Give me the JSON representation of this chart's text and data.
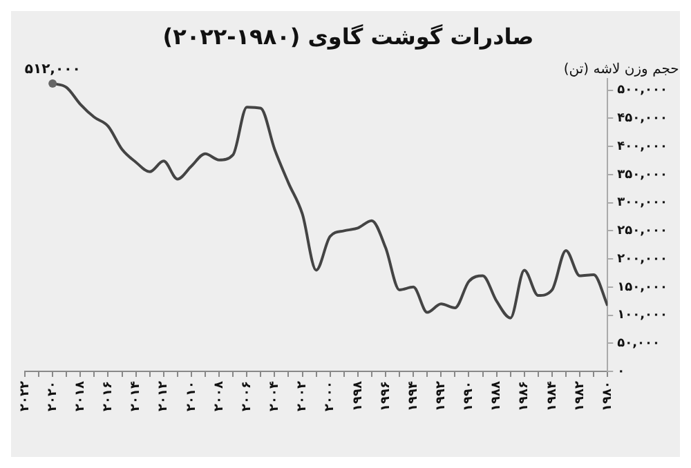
{
  "chart_data": {
    "type": "line",
    "title": "صادرات گوشت گاوی (۱۹۸۰-۲۰۲۲)",
    "ylabel": "حجم وزن لاشه (تن)",
    "x": [
      1980,
      1981,
      1982,
      1983,
      1984,
      1985,
      1986,
      1987,
      1988,
      1989,
      1990,
      1991,
      1992,
      1993,
      1994,
      1995,
      1996,
      1997,
      1998,
      1999,
      2000,
      2001,
      2002,
      2003,
      2004,
      2005,
      2006,
      2007,
      2008,
      2009,
      2010,
      2011,
      2012,
      2013,
      2014,
      2015,
      2016,
      2017,
      2018,
      2019,
      2020
    ],
    "series": [
      {
        "color": "#444444",
        "values": [
          117000,
          172000,
          170000,
          215000,
          145000,
          135000,
          180000,
          95000,
          125000,
          170000,
          160000,
          113000,
          120000,
          105000,
          150000,
          145000,
          220000,
          268000,
          255000,
          250000,
          240000,
          180000,
          280000,
          335000,
          395000,
          468000,
          470000,
          385000,
          376000,
          387000,
          365000,
          342000,
          374000,
          355000,
          372000,
          395000,
          436000,
          452000,
          475000,
          505000,
          512000
        ]
      }
    ],
    "xlim": [
      2022,
      1980
    ],
    "xticks": [
      {
        "value": 1980,
        "label": "۱۹۸۰"
      },
      {
        "value": 1981,
        "label": null
      },
      {
        "value": 1982,
        "label": "۱۹۸۲"
      },
      {
        "value": 1983,
        "label": null
      },
      {
        "value": 1984,
        "label": "۱۹۸۴"
      },
      {
        "value": 1985,
        "label": null
      },
      {
        "value": 1986,
        "label": "۱۹۸۶"
      },
      {
        "value": 1987,
        "label": null
      },
      {
        "value": 1988,
        "label": "۱۹۸۸"
      },
      {
        "value": 1989,
        "label": null
      },
      {
        "value": 1990,
        "label": "۱۹۹۰"
      },
      {
        "value": 1991,
        "label": null
      },
      {
        "value": 1992,
        "label": "۱۹۹۲"
      },
      {
        "value": 1993,
        "label": null
      },
      {
        "value": 1994,
        "label": "۱۹۹۴"
      },
      {
        "value": 1995,
        "label": null
      },
      {
        "value": 1996,
        "label": "۱۹۹۶"
      },
      {
        "value": 1997,
        "label": null
      },
      {
        "value": 1998,
        "label": "۱۹۹۸"
      },
      {
        "value": 1999,
        "label": null
      },
      {
        "value": 2000,
        "label": "۲۰۰۰"
      },
      {
        "value": 2001,
        "label": null
      },
      {
        "value": 2002,
        "label": "۲۰۰۲"
      },
      {
        "value": 2003,
        "label": null
      },
      {
        "value": 2004,
        "label": "۲۰۰۴"
      },
      {
        "value": 2005,
        "label": null
      },
      {
        "value": 2006,
        "label": "۲۰۰۶"
      },
      {
        "value": 2007,
        "label": null
      },
      {
        "value": 2008,
        "label": "۲۰۰۸"
      },
      {
        "value": 2009,
        "label": null
      },
      {
        "value": 2010,
        "label": "۲۰۱۰"
      },
      {
        "value": 2011,
        "label": null
      },
      {
        "value": 2012,
        "label": "۲۰۱۲"
      },
      {
        "value": 2013,
        "label": null
      },
      {
        "value": 2014,
        "label": "۲۰۱۴"
      },
      {
        "value": 2015,
        "label": null
      },
      {
        "value": 2016,
        "label": "۲۰۱۶"
      },
      {
        "value": 2017,
        "label": null
      },
      {
        "value": 2018,
        "label": "۲۰۱۸"
      },
      {
        "value": 2019,
        "label": null
      },
      {
        "value": 2020,
        "label": "۲۰۲۰"
      },
      {
        "value": 2021,
        "label": null
      },
      {
        "value": 2022,
        "label": "۲۰۲۲"
      }
    ],
    "ylim": [
      0,
      520000
    ],
    "yticks": [
      {
        "value": 0,
        "label": "۰"
      },
      {
        "value": 50000,
        "label": "۵۰,۰۰۰"
      },
      {
        "value": 100000,
        "label": "۱۰۰,۰۰۰"
      },
      {
        "value": 150000,
        "label": "۱۵۰,۰۰۰"
      },
      {
        "value": 200000,
        "label": "۲۰۰,۰۰۰"
      },
      {
        "value": 250000,
        "label": "۲۵۰,۰۰۰"
      },
      {
        "value": 300000,
        "label": "۳۰۰,۰۰۰"
      },
      {
        "value": 350000,
        "label": "۳۵۰,۰۰۰"
      },
      {
        "value": 400000,
        "label": "۴۰۰,۰۰۰"
      },
      {
        "value": 450000,
        "label": "۴۵۰,۰۰۰"
      },
      {
        "value": 500000,
        "label": "۵۰۰,۰۰۰"
      }
    ],
    "annotations": [
      {
        "text": "۵۱۲,۰۰۰",
        "x": 2020,
        "y": 512000
      }
    ],
    "grid": false,
    "legend": false,
    "marker": "none",
    "line_style": "solid"
  }
}
